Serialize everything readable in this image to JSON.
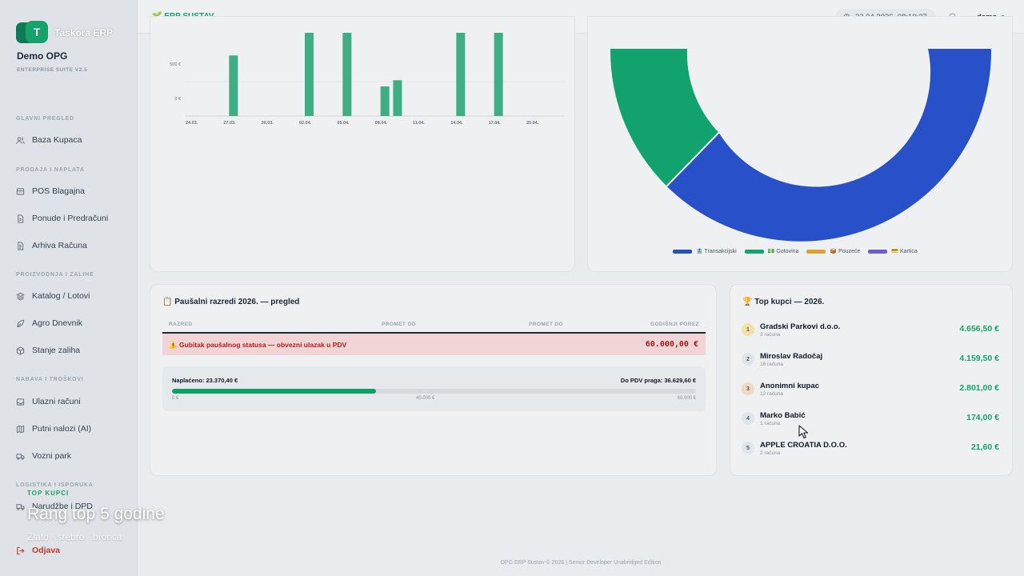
{
  "app": {
    "brand_initial": "T",
    "brand_name": "Taskora ERP",
    "org_name": "Demo OPG",
    "org_sub": "ENTERPRISE SUITE V2.5"
  },
  "sidebar": {
    "sections": [
      {
        "label": "GLAVNI PREGLED",
        "items": [
          {
            "label": "Baza Kupaca",
            "icon": "users-icon"
          }
        ]
      },
      {
        "label": "PRODAJA I NAPLATA",
        "items": [
          {
            "label": "POS Blagajna",
            "icon": "register-icon"
          },
          {
            "label": "Ponude i Predračuni",
            "icon": "document-icon"
          },
          {
            "label": "Arhiva Računa",
            "icon": "archive-icon"
          }
        ]
      },
      {
        "label": "PROIZVODNJA I ZALIHE",
        "items": [
          {
            "label": "Katalog / Lotovi",
            "icon": "layers-icon"
          },
          {
            "label": "Agro Dnevnik",
            "icon": "leaf-icon"
          },
          {
            "label": "Stanje zaliha",
            "icon": "box-icon"
          }
        ]
      },
      {
        "label": "NABAVA I TROŠKOVI",
        "items": [
          {
            "label": "Ulazni računi",
            "icon": "inbox-icon"
          },
          {
            "label": "Putni nalozi (AI)",
            "icon": "map-icon"
          },
          {
            "label": "Vozni park",
            "icon": "truck-icon"
          }
        ]
      },
      {
        "label": "LOGISTIKA I ISPORUKA",
        "items": [
          {
            "label": "Narudžbe i DPD",
            "icon": "package-icon"
          }
        ]
      }
    ],
    "logout_label": "Odjava"
  },
  "topbar": {
    "title": "🌱 ERP SUSTAV",
    "datetime": "22.04.2026. 08:10:27",
    "user": "demo"
  },
  "chart_data": [
    {
      "type": "bar",
      "title": "",
      "categories": [
        "24.03.",
        "27.03.",
        "30.03.",
        "02.04.",
        "05.04.",
        "08.04.",
        "11.04.",
        "14.04.",
        "17.04.",
        "20.04."
      ],
      "visible_bars": [
        {
          "x": "27.03.",
          "value": 880
        },
        {
          "x": "02.04.",
          "value": 1400
        },
        {
          "x": "05.04.",
          "value": 1400
        },
        {
          "x": "08.04.",
          "value": 430
        },
        {
          "x": "09.04.",
          "value": 520
        },
        {
          "x": "14.04.",
          "value": 1400
        },
        {
          "x": "17.04.",
          "value": 1400
        }
      ],
      "yticks": [
        "500 €",
        "0 €"
      ],
      "color": "#3fae85"
    },
    {
      "type": "pie",
      "variant": "donut",
      "legend": [
        {
          "name": "🏦 Transakcijski",
          "color": "#2851c9"
        },
        {
          "name": "💵 Gotovina",
          "color": "#11a26e"
        },
        {
          "name": "📦 Pouzeće",
          "color": "#e0a030"
        },
        {
          "name": "💳 Kartica",
          "color": "#6f5bd3"
        }
      ],
      "legend_position": "bottom"
    }
  ],
  "pausal": {
    "title": "📋 Paušalni razredi 2026. — pregled",
    "columns": [
      "RAZRED",
      "PROMET OD",
      "PROMET DO",
      "GODIŠNJI POREZ"
    ],
    "warning_text": "⚠️ Gubitak paušalnog statusa — obvezni ulazak u PDV",
    "warning_amount": "60.000,00 €",
    "paid_label": "Naplaćeno: 23.370,40 €",
    "remaining_label": "Do PDV praga: 36.629,60 €",
    "progress_fraction": 0.3895,
    "scale": [
      "0 €",
      "40.000 €",
      "60.000 €"
    ]
  },
  "top_customers": {
    "title": "🏆 Top kupci — 2026.",
    "items": [
      {
        "rank": "1",
        "name": "Gradski Parkovi d.o.o.",
        "count": "3 računa",
        "amount": "4.656,50 €",
        "badge": "#f3e2a8"
      },
      {
        "rank": "2",
        "name": "Miroslav Radočaj",
        "count": "16 računa",
        "amount": "4.159,50 €",
        "badge": "#e1e4e8"
      },
      {
        "rank": "3",
        "name": "Anonimni kupac",
        "count": "12 računa",
        "amount": "2.801,00 €",
        "badge": "#f1d9bf"
      },
      {
        "rank": "4",
        "name": "Marko Babić",
        "count": "1 računa",
        "amount": "174,00 €",
        "badge": "#e1e4e8"
      },
      {
        "rank": "5",
        "name": "APPLE CROATIA D.O.O.",
        "count": "2 računa",
        "amount": "21,60 €",
        "badge": "#e1e4e8"
      }
    ]
  },
  "footer": "OPG ERP Sustav © 2026 | Senior Developer Unabridged Edition",
  "overlay": {
    "tag": "TOP KUPCI",
    "title": "Rang top 5 godine",
    "subtitle": "Zlato · srebro · bronca"
  }
}
